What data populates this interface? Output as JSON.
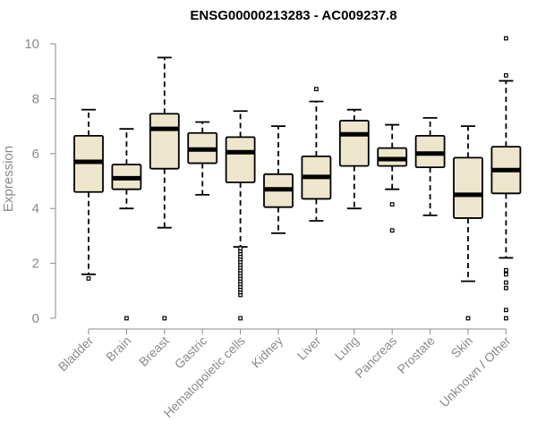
{
  "chart_data": {
    "type": "box",
    "title": "ENSG00000213283 - AC009237.8",
    "ylabel": "Expression",
    "xlabel": "",
    "ylim": [
      0,
      10.4
    ],
    "yticks": [
      0,
      2,
      4,
      6,
      8,
      10
    ],
    "grid": false,
    "legend": "none",
    "colors": {
      "box_fill": "#EDE6CC",
      "box_stroke": "#000000",
      "median": "#000000",
      "axis": "#8a8a8a"
    },
    "categories": [
      "Bladder",
      "Brain",
      "Breast",
      "Gastric",
      "Hematopoietic cells",
      "Kidney",
      "Liver",
      "Lung",
      "Pancreas",
      "Prostate",
      "Skin",
      "Unknown / Other"
    ],
    "boxes": [
      {
        "category": "Bladder",
        "whisker_low": 1.6,
        "q1": 4.6,
        "median": 5.7,
        "q3": 6.65,
        "whisker_high": 7.6,
        "outliers": [
          1.45
        ]
      },
      {
        "category": "Brain",
        "whisker_low": 4.0,
        "q1": 4.7,
        "median": 5.1,
        "q3": 5.6,
        "whisker_high": 6.9,
        "outliers": [
          0.0
        ]
      },
      {
        "category": "Breast",
        "whisker_low": 3.3,
        "q1": 5.45,
        "median": 6.9,
        "q3": 7.45,
        "whisker_high": 9.5,
        "outliers": [
          0.0
        ]
      },
      {
        "category": "Gastric",
        "whisker_low": 4.5,
        "q1": 5.65,
        "median": 6.15,
        "q3": 6.75,
        "whisker_high": 7.15,
        "outliers": []
      },
      {
        "category": "Hematopoietic cells",
        "whisker_low": 2.6,
        "q1": 4.95,
        "median": 6.05,
        "q3": 6.6,
        "whisker_high": 7.55,
        "outliers": [
          0.0,
          0.85,
          0.95,
          1.05,
          1.15,
          1.25,
          1.35,
          1.45,
          1.55,
          1.65,
          1.75,
          1.85,
          1.95,
          2.05,
          2.15,
          2.25,
          2.35,
          2.45,
          2.55
        ]
      },
      {
        "category": "Kidney",
        "whisker_low": 3.1,
        "q1": 4.05,
        "median": 4.7,
        "q3": 5.25,
        "whisker_high": 7.0,
        "outliers": []
      },
      {
        "category": "Liver",
        "whisker_low": 3.55,
        "q1": 4.35,
        "median": 5.15,
        "q3": 5.9,
        "whisker_high": 7.9,
        "outliers": [
          8.35
        ]
      },
      {
        "category": "Lung",
        "whisker_low": 4.0,
        "q1": 5.55,
        "median": 6.7,
        "q3": 7.2,
        "whisker_high": 7.6,
        "outliers": []
      },
      {
        "category": "Pancreas",
        "whisker_low": 4.7,
        "q1": 5.55,
        "median": 5.8,
        "q3": 6.2,
        "whisker_high": 7.05,
        "outliers": [
          3.2,
          4.15
        ]
      },
      {
        "category": "Prostate",
        "whisker_low": 3.75,
        "q1": 5.5,
        "median": 6.0,
        "q3": 6.65,
        "whisker_high": 7.3,
        "outliers": []
      },
      {
        "category": "Skin",
        "whisker_low": 1.35,
        "q1": 3.65,
        "median": 4.5,
        "q3": 5.85,
        "whisker_high": 7.0,
        "outliers": [
          0.0
        ]
      },
      {
        "category": "Unknown / Other",
        "whisker_low": 2.2,
        "q1": 4.55,
        "median": 5.4,
        "q3": 6.25,
        "whisker_high": 8.65,
        "outliers": [
          0.0,
          0.3,
          1.1,
          1.3,
          1.6,
          1.75,
          8.85,
          10.2
        ]
      }
    ]
  }
}
